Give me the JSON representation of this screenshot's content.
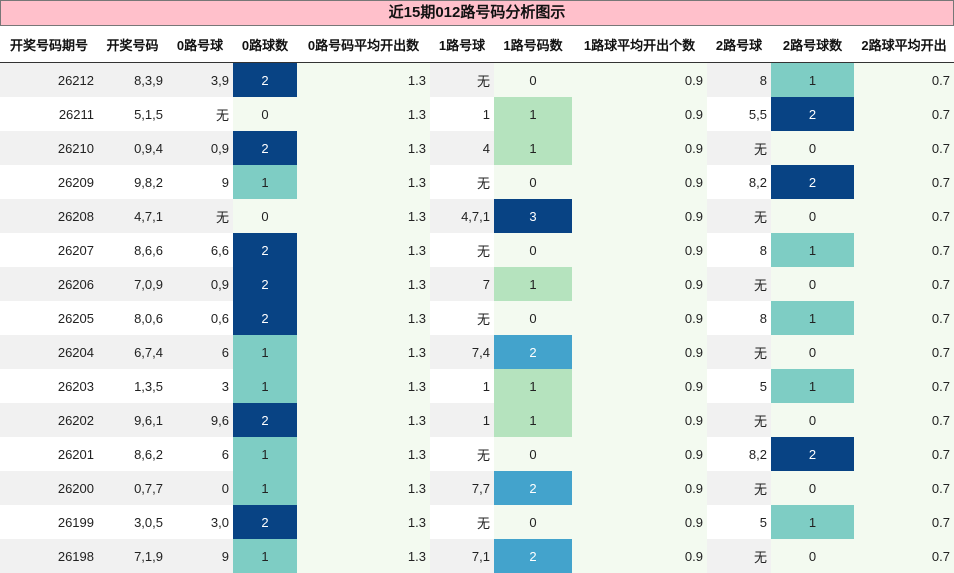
{
  "title": "近15期012路号码分析图示",
  "headers": [
    "开奖号码期号",
    "开奖号码",
    "0路号球",
    "0路球数",
    "0路号码平均开出数",
    "1路号球",
    "1路号码数",
    "1路球平均开出个数",
    "2路号球",
    "2路号球数",
    "2路球平均开出"
  ],
  "rows": [
    [
      "26212",
      "8,3,9",
      "3,9",
      "2",
      "1.3",
      "无",
      "0",
      "0.9",
      "8",
      "1",
      "0.7"
    ],
    [
      "26211",
      "5,1,5",
      "无",
      "0",
      "1.3",
      "1",
      "1",
      "0.9",
      "5,5",
      "2",
      "0.7"
    ],
    [
      "26210",
      "0,9,4",
      "0,9",
      "2",
      "1.3",
      "4",
      "1",
      "0.9",
      "无",
      "0",
      "0.7"
    ],
    [
      "26209",
      "9,8,2",
      "9",
      "1",
      "1.3",
      "无",
      "0",
      "0.9",
      "8,2",
      "2",
      "0.7"
    ],
    [
      "26208",
      "4,7,1",
      "无",
      "0",
      "1.3",
      "4,7,1",
      "3",
      "0.9",
      "无",
      "0",
      "0.7"
    ],
    [
      "26207",
      "8,6,6",
      "6,6",
      "2",
      "1.3",
      "无",
      "0",
      "0.9",
      "8",
      "1",
      "0.7"
    ],
    [
      "26206",
      "7,0,9",
      "0,9",
      "2",
      "1.3",
      "7",
      "1",
      "0.9",
      "无",
      "0",
      "0.7"
    ],
    [
      "26205",
      "8,0,6",
      "0,6",
      "2",
      "1.3",
      "无",
      "0",
      "0.9",
      "8",
      "1",
      "0.7"
    ],
    [
      "26204",
      "6,7,4",
      "6",
      "1",
      "1.3",
      "7,4",
      "2",
      "0.9",
      "无",
      "0",
      "0.7"
    ],
    [
      "26203",
      "1,3,5",
      "3",
      "1",
      "1.3",
      "1",
      "1",
      "0.9",
      "5",
      "1",
      "0.7"
    ],
    [
      "26202",
      "9,6,1",
      "9,6",
      "2",
      "1.3",
      "1",
      "1",
      "0.9",
      "无",
      "0",
      "0.7"
    ],
    [
      "26201",
      "8,6,2",
      "6",
      "1",
      "1.3",
      "无",
      "0",
      "0.9",
      "8,2",
      "2",
      "0.7"
    ],
    [
      "26200",
      "0,7,7",
      "0",
      "1",
      "1.3",
      "7,7",
      "2",
      "0.9",
      "无",
      "0",
      "0.7"
    ],
    [
      "26199",
      "3,0,5",
      "3,0",
      "2",
      "1.3",
      "无",
      "0",
      "0.9",
      "5",
      "1",
      "0.7"
    ],
    [
      "26198",
      "7,1,9",
      "9",
      "1",
      "1.3",
      "7,1",
      "2",
      "0.9",
      "无",
      "0",
      "0.7"
    ]
  ]
}
